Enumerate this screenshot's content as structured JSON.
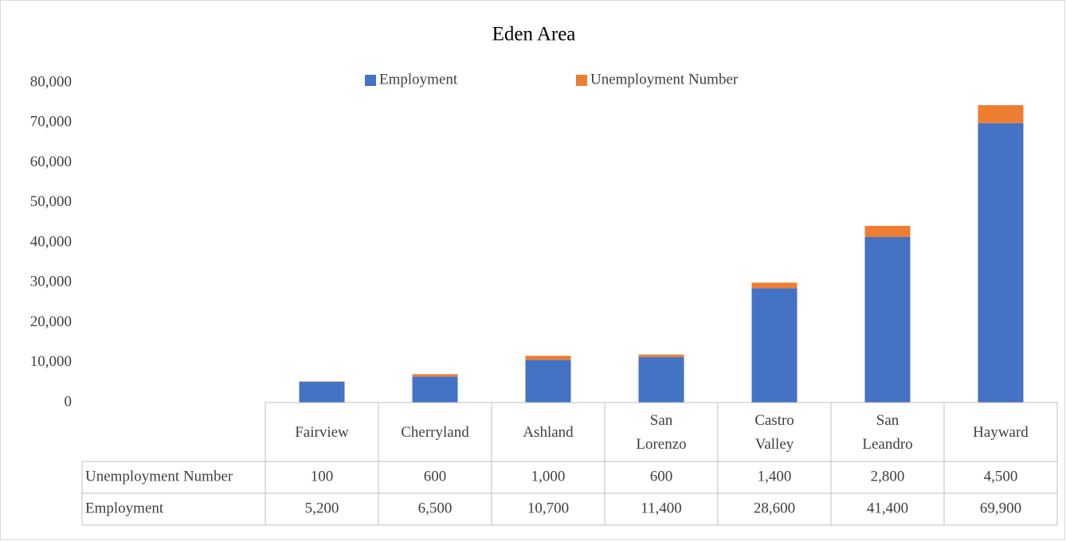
{
  "chart_data": {
    "type": "stacked_bar",
    "title": "Eden Area",
    "categories": [
      "Fairview",
      "Cherryland",
      "Ashland",
      "San Lorenzo",
      "Castro Valley",
      "San Leandro",
      "Hayward"
    ],
    "series": [
      {
        "name": "Employment",
        "color": "#4472c4",
        "values": [
          5200,
          6500,
          10700,
          11400,
          28600,
          41400,
          69900
        ],
        "value_labels": [
          "5,200",
          "6,500",
          "10,700",
          "11,400",
          "28,600",
          "41,400",
          "69,900"
        ]
      },
      {
        "name": "Unemployment Number",
        "color": "#ed7d31",
        "values": [
          100,
          600,
          1000,
          600,
          1400,
          2800,
          4500
        ],
        "value_labels": [
          "100",
          "600",
          "1,000",
          "600",
          "1,400",
          "2,800",
          "4,500"
        ]
      }
    ],
    "ylim": [
      0,
      80000
    ],
    "yticks": [
      0,
      {
        "value": 10000,
        "label": "10,000"
      },
      {
        "value": 20000,
        "label": "20,000"
      },
      {
        "value": 30000,
        "label": "30,000"
      },
      {
        "value": 40000,
        "label": "40,000"
      },
      {
        "value": 50000,
        "label": "50,000"
      },
      {
        "value": 60000,
        "label": "60,000"
      },
      {
        "value": 70000,
        "label": "70,000"
      },
      {
        "value": 80000,
        "label": "80,000"
      }
    ],
    "grid": false
  }
}
